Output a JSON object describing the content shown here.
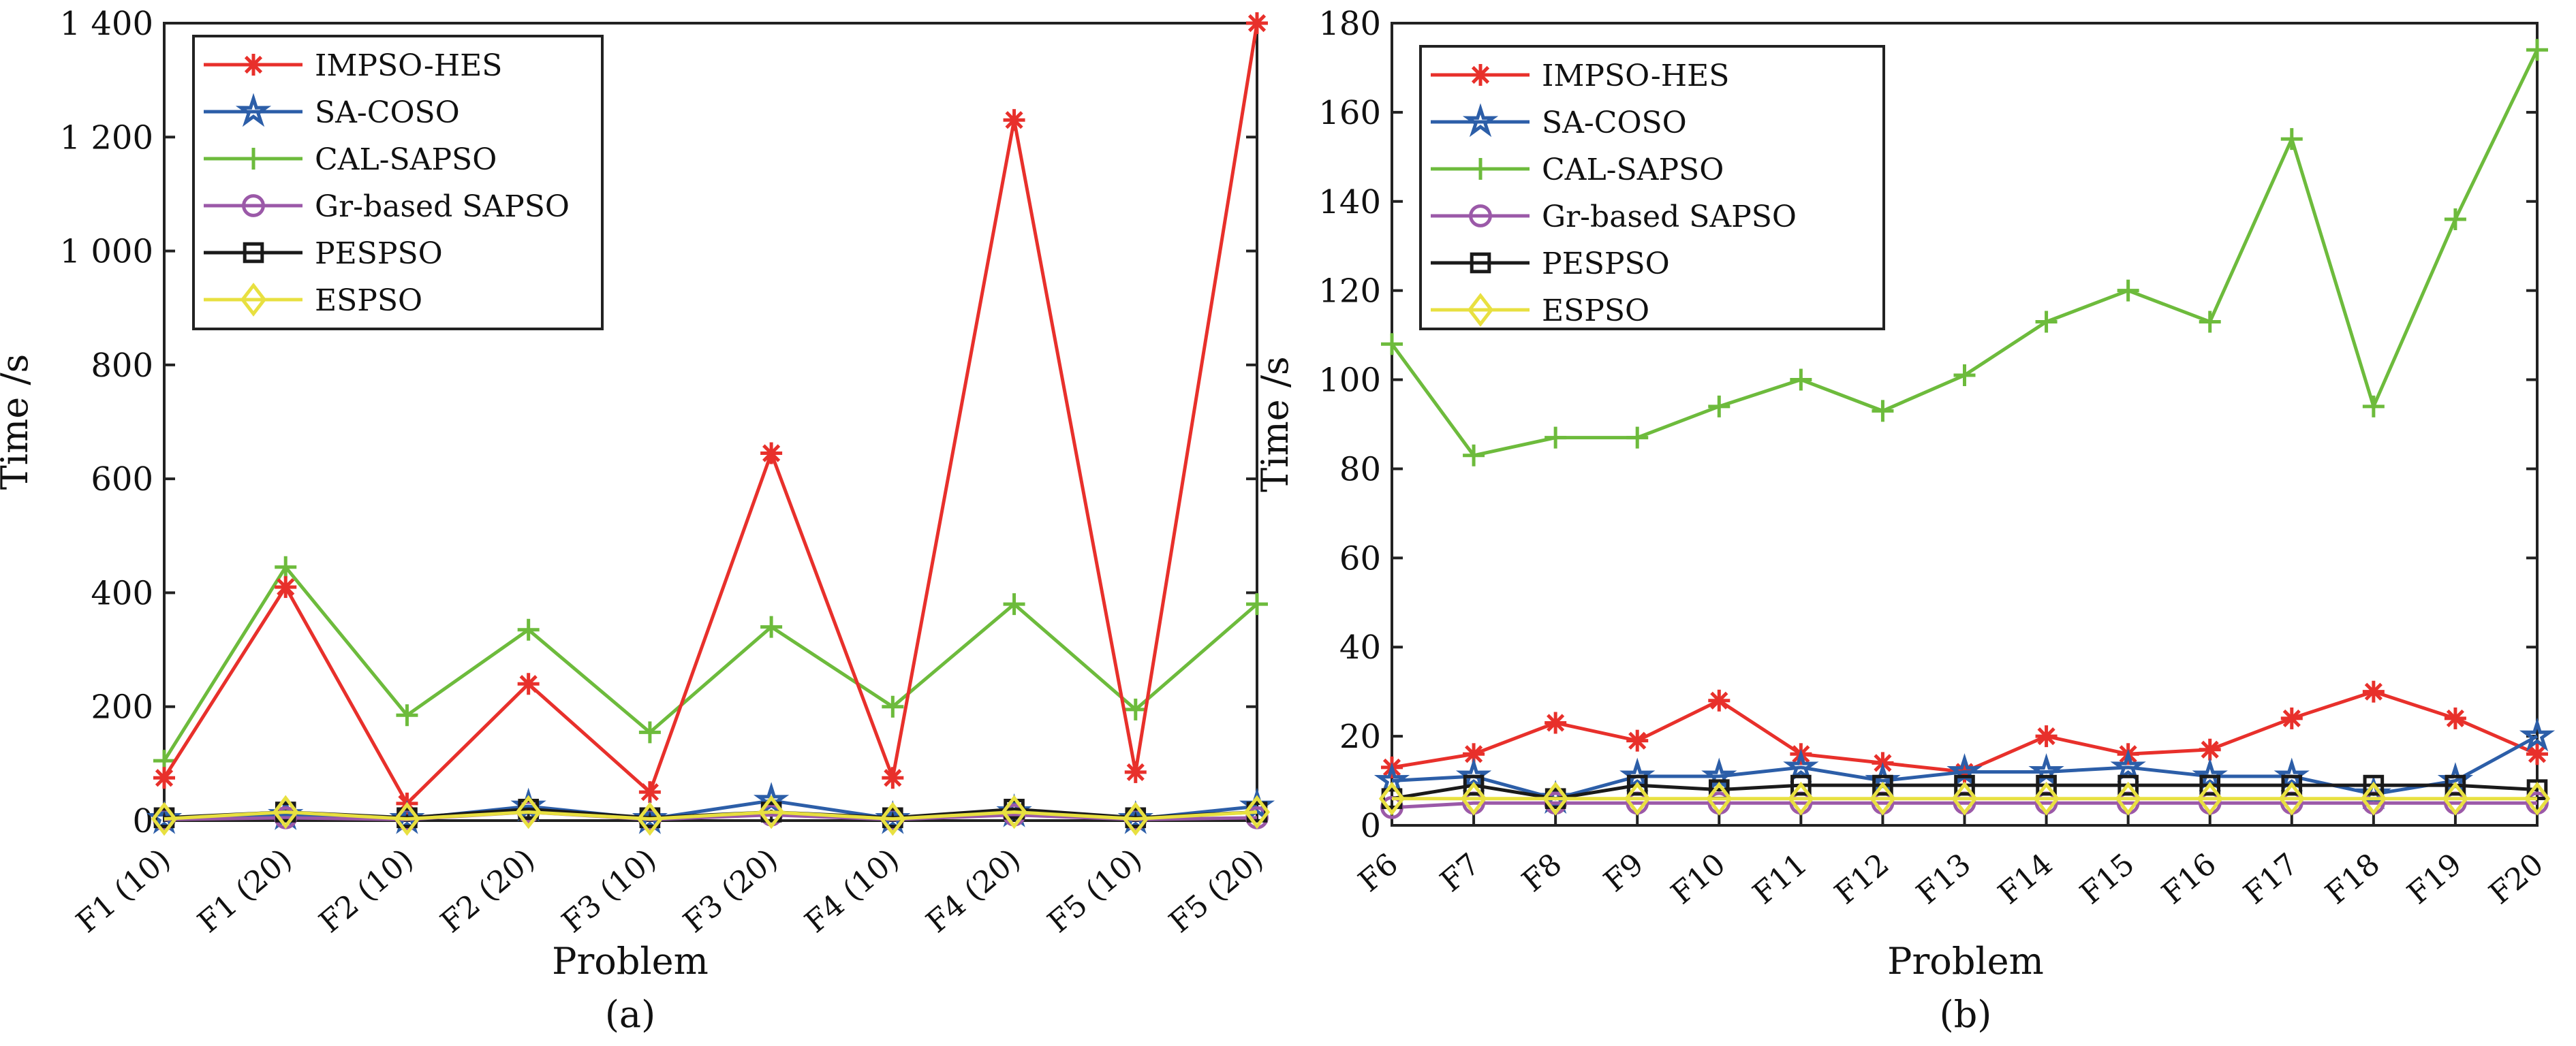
{
  "chart_data": [
    {
      "type": "line",
      "panel_label": "(a)",
      "xlabel": "Problem",
      "ylabel": "Time /s",
      "ylim": [
        0,
        1400
      ],
      "yticks": [
        0,
        200,
        400,
        600,
        800,
        1000,
        1200,
        1400
      ],
      "ytick_labels": [
        "0",
        "200",
        "400",
        "600",
        "800",
        "1 000",
        "1 200",
        "1 400"
      ],
      "categories": [
        "F1 (10)",
        "F1 (20)",
        "F2 (10)",
        "F2 (20)",
        "F3 (10)",
        "F3 (20)",
        "F4 (10)",
        "F4 (20)",
        "F5 (10)",
        "F5 (20)"
      ],
      "legend_position": "top-left",
      "series": [
        {
          "name": "IMPSO-HES",
          "color": "#e8302b",
          "marker": "asterisk",
          "values": [
            75,
            410,
            30,
            240,
            50,
            645,
            75,
            1230,
            85,
            1400
          ]
        },
        {
          "name": "SA-COSO",
          "color": "#2c5ea8",
          "marker": "star",
          "values": [
            3,
            10,
            3,
            25,
            3,
            35,
            3,
            15,
            3,
            25
          ]
        },
        {
          "name": "CAL-SAPSO",
          "color": "#6dbb3c",
          "marker": "plus",
          "values": [
            105,
            445,
            185,
            335,
            155,
            340,
            200,
            380,
            195,
            380
          ]
        },
        {
          "name": "Gr-based SAPSO",
          "color": "#9b59a8",
          "marker": "circle",
          "values": [
            2,
            5,
            2,
            15,
            2,
            10,
            2,
            10,
            2,
            5
          ]
        },
        {
          "name": "PESPSO",
          "color": "#1a1a1a",
          "marker": "square",
          "values": [
            5,
            15,
            5,
            20,
            5,
            15,
            5,
            20,
            5,
            15
          ]
        },
        {
          "name": "ESPSO",
          "color": "#e8e040",
          "marker": "diamond",
          "values": [
            3,
            15,
            3,
            15,
            3,
            15,
            3,
            15,
            3,
            15
          ]
        }
      ]
    },
    {
      "type": "line",
      "panel_label": "(b)",
      "xlabel": "Problem",
      "ylabel": "Time /s",
      "ylim": [
        0,
        180
      ],
      "yticks": [
        0,
        20,
        40,
        60,
        80,
        100,
        120,
        140,
        160,
        180
      ],
      "ytick_labels": [
        "0",
        "20",
        "40",
        "60",
        "80",
        "100",
        "120",
        "140",
        "160",
        "180"
      ],
      "categories": [
        "F6",
        "F7",
        "F8",
        "F9",
        "F10",
        "F11",
        "F12",
        "F13",
        "F14",
        "F15",
        "F16",
        "F17",
        "F18",
        "F19",
        "F20"
      ],
      "legend_position": "top-left",
      "series": [
        {
          "name": "IMPSO-HES",
          "color": "#e8302b",
          "marker": "asterisk",
          "values": [
            13,
            16,
            23,
            19,
            28,
            16,
            14,
            12,
            20,
            16,
            17,
            24,
            30,
            24,
            16
          ]
        },
        {
          "name": "SA-COSO",
          "color": "#2c5ea8",
          "marker": "star",
          "values": [
            10,
            11,
            6,
            11,
            11,
            13,
            10,
            12,
            12,
            13,
            11,
            11,
            7,
            10,
            20
          ]
        },
        {
          "name": "CAL-SAPSO",
          "color": "#6dbb3c",
          "marker": "plus",
          "values": [
            108,
            83,
            87,
            87,
            94,
            100,
            93,
            101,
            113,
            120,
            113,
            154,
            94,
            136,
            174
          ]
        },
        {
          "name": "Gr-based SAPSO",
          "color": "#9b59a8",
          "marker": "circle",
          "values": [
            4,
            5,
            5,
            5,
            5,
            5,
            5,
            5,
            5,
            5,
            5,
            5,
            5,
            5,
            5
          ]
        },
        {
          "name": "PESPSO",
          "color": "#1a1a1a",
          "marker": "square",
          "values": [
            6,
            9,
            6,
            9,
            8,
            9,
            9,
            9,
            9,
            9,
            9,
            9,
            9,
            9,
            8
          ]
        },
        {
          "name": "ESPSO",
          "color": "#e8e040",
          "marker": "diamond",
          "values": [
            6,
            6,
            6,
            6,
            6,
            6,
            6,
            6,
            6,
            6,
            6,
            6,
            6,
            6,
            6
          ]
        }
      ]
    }
  ]
}
